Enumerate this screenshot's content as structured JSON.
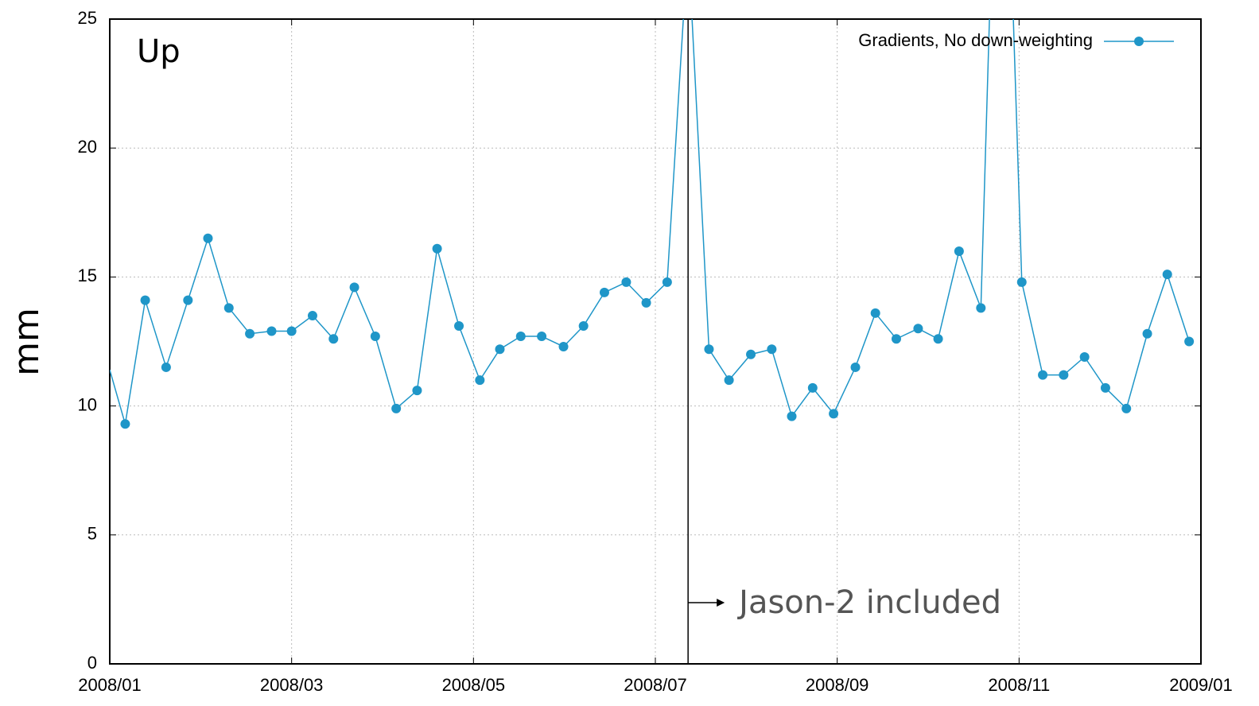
{
  "chart_data": {
    "type": "line",
    "panel_label": "Up",
    "ylabel": "mm",
    "x": [
      0,
      0.17,
      0.39,
      0.62,
      0.86,
      1.08,
      1.31,
      1.54,
      1.78,
      2.0,
      2.23,
      2.46,
      2.69,
      2.92,
      3.15,
      3.38,
      3.6,
      3.84,
      4.07,
      4.29,
      4.52,
      4.75,
      4.99,
      5.21,
      5.44,
      5.68,
      5.9,
      6.13,
      6.36,
      6.59,
      6.81,
      7.05,
      7.28,
      7.5,
      7.73,
      7.96,
      8.2,
      8.42,
      8.65,
      8.89,
      9.11,
      9.34,
      9.58,
      9.8,
      10.03,
      10.26,
      10.49,
      10.72,
      10.95,
      11.18,
      11.41,
      11.63,
      11.87
    ],
    "series": [
      {
        "name": "Gradients, No down-weighting",
        "color": "#1f96c8",
        "values": [
          11.4,
          9.3,
          14.1,
          11.5,
          14.1,
          16.5,
          13.8,
          12.8,
          12.9,
          12.9,
          13.5,
          12.6,
          14.6,
          12.7,
          9.9,
          10.6,
          16.1,
          13.1,
          11.0,
          12.2,
          12.7,
          12.7,
          12.3,
          13.1,
          14.4,
          14.8,
          14.0,
          14.8,
          28,
          12.2,
          11.0,
          12.0,
          12.2,
          9.6,
          10.7,
          9.7,
          11.5,
          13.6,
          12.6,
          13.0,
          12.6,
          16.0,
          13.8,
          40,
          14.8,
          11.2,
          11.2,
          11.9,
          10.7,
          9.9,
          12.8,
          15.1,
          12.5
        ]
      }
    ],
    "xlim": [
      0,
      12
    ],
    "xticks": [
      {
        "value": 0,
        "label": "2008/01"
      },
      {
        "value": 2,
        "label": "2008/03"
      },
      {
        "value": 4,
        "label": "2008/05"
      },
      {
        "value": 6,
        "label": "2008/07"
      },
      {
        "value": 8,
        "label": "2008/09"
      },
      {
        "value": 10,
        "label": "2008/11"
      },
      {
        "value": 12,
        "label": "2009/01"
      }
    ],
    "ylim": [
      0,
      25
    ],
    "yticks": [
      0,
      5,
      10,
      15,
      20,
      25
    ],
    "grid": true,
    "legend": "upper right",
    "annotation": {
      "text": "Jason-2 included",
      "x": 6.36
    }
  }
}
